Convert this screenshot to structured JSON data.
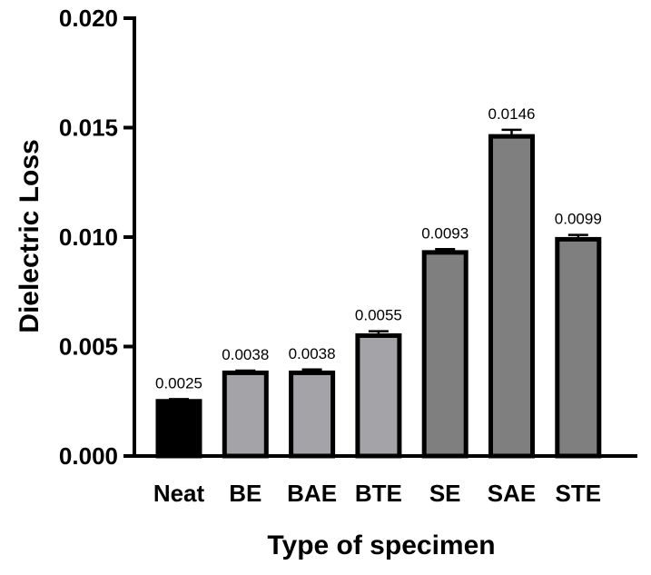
{
  "chart_data": {
    "type": "bar",
    "title": "",
    "xlabel": "Type of specimen",
    "ylabel": "Dielectric Loss",
    "ylim": [
      0,
      0.02
    ],
    "yticks": [
      "0.000",
      "0.005",
      "0.010",
      "0.015",
      "0.020"
    ],
    "ytick_values": [
      0,
      0.005,
      0.01,
      0.015,
      0.02
    ],
    "grid": false,
    "categories": [
      "Neat",
      "BE",
      "BAE",
      "BTE",
      "SE",
      "SAE",
      "STE"
    ],
    "values": [
      0.0025,
      0.0038,
      0.0038,
      0.0055,
      0.0093,
      0.0146,
      0.0099
    ],
    "errors": [
      0.0001,
      0.0001,
      0.00015,
      0.0002,
      0.00015,
      0.0003,
      0.0002
    ],
    "data_labels": [
      "0.0025",
      "0.0038",
      "0.0038",
      "0.0055",
      "0.0093",
      "0.0146",
      "0.0099"
    ],
    "colors": [
      "#000000",
      "#a3a3a8",
      "#a3a3a8",
      "#a3a3a8",
      "#7f7f7f",
      "#7f7f7f",
      "#7f7f7f"
    ]
  }
}
